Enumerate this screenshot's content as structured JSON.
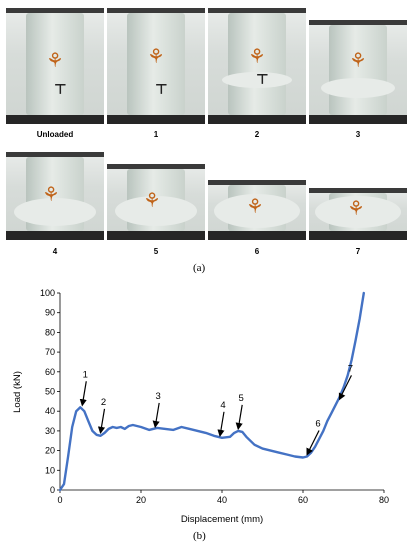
{
  "figure_a": {
    "caption": "(a)",
    "photos": [
      {
        "label": "Unloaded"
      },
      {
        "label": "1"
      },
      {
        "label": "2"
      },
      {
        "label": "3"
      },
      {
        "label": "4"
      },
      {
        "label": "5"
      },
      {
        "label": "6"
      },
      {
        "label": "7"
      }
    ]
  },
  "figure_b": {
    "caption": "(b)"
  },
  "chart_data": {
    "type": "line",
    "xlabel": "Displacement (mm)",
    "ylabel": "Load (kN)",
    "xlim": [
      0,
      80
    ],
    "ylim": [
      0,
      100
    ],
    "xticks": [
      0,
      20,
      40,
      60,
      80
    ],
    "yticks": [
      0,
      10,
      20,
      30,
      40,
      50,
      60,
      70,
      80,
      90,
      100
    ],
    "grid": false,
    "series_color": "#4472c4",
    "series": [
      {
        "x": [
          0,
          1,
          2,
          3,
          4,
          5,
          6,
          7,
          8,
          9,
          10,
          11,
          12,
          13,
          14,
          15,
          16,
          17,
          18,
          20,
          22,
          24,
          26,
          28,
          30,
          32,
          34,
          36,
          38,
          40,
          42,
          43,
          44,
          45,
          46,
          48,
          50,
          52,
          54,
          56,
          58,
          60,
          61,
          62,
          63,
          64,
          65,
          66,
          67,
          68,
          69,
          70,
          71,
          72,
          73,
          74,
          75
        ],
        "y": [
          0,
          3,
          17,
          32,
          40,
          42,
          40,
          35,
          30,
          28,
          27.5,
          29,
          31,
          32,
          31.5,
          32,
          31,
          32.5,
          33,
          32,
          30.5,
          31.5,
          31,
          30.5,
          32,
          31,
          30,
          29,
          27.5,
          26.5,
          27,
          29,
          30,
          29.5,
          27,
          23,
          21,
          20,
          19,
          18,
          17,
          16.5,
          17,
          19,
          22,
          26,
          30,
          35,
          39,
          43,
          47,
          52,
          58,
          66,
          76,
          87,
          100
        ]
      }
    ],
    "annotations": [
      {
        "text": "1",
        "x": 5.5,
        "y": 42
      },
      {
        "text": "2",
        "x": 10,
        "y": 28
      },
      {
        "text": "3",
        "x": 23.5,
        "y": 31
      },
      {
        "text": "4",
        "x": 39.5,
        "y": 26.5
      },
      {
        "text": "5",
        "x": 44,
        "y": 30
      },
      {
        "text": "6",
        "x": 61,
        "y": 17
      },
      {
        "text": "7",
        "x": 69,
        "y": 45
      }
    ]
  }
}
